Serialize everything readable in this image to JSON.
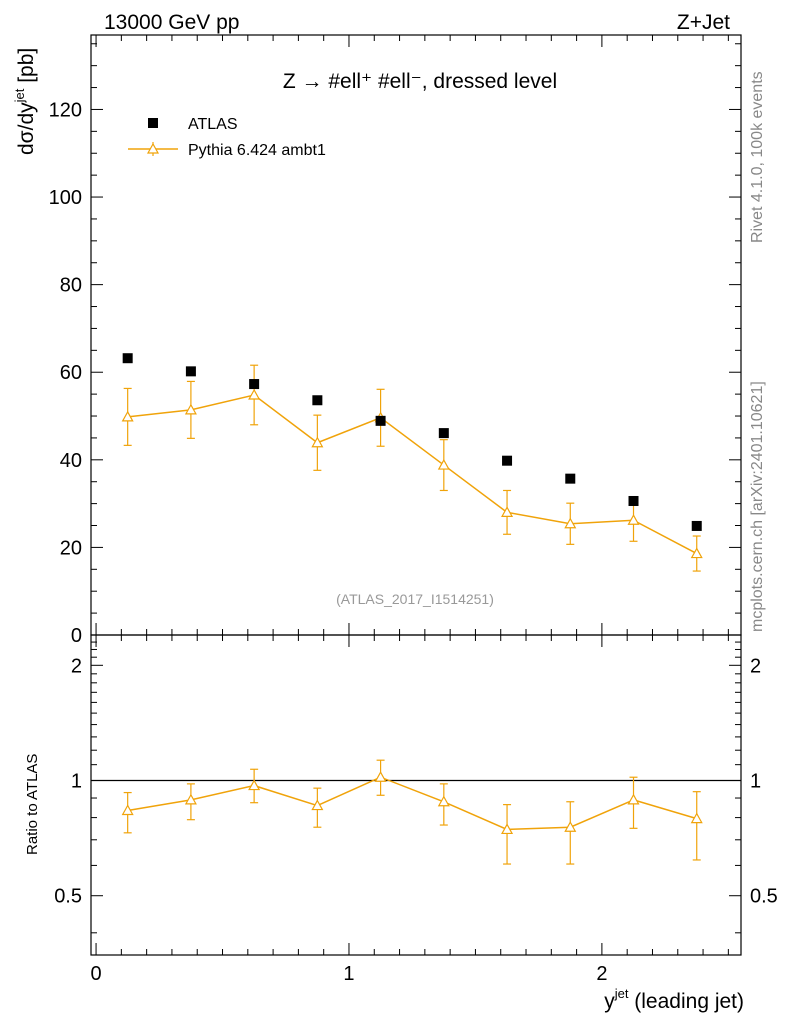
{
  "header": {
    "left": "13000 GeV pp",
    "right": "Z+Jet"
  },
  "side": {
    "rivet": "Rivet 4.1.0,  100k events",
    "mcplots": "mcplots.cern.ch [arXiv:2401.10621]"
  },
  "colors": {
    "mc": "#f0a30a",
    "data": "#000000",
    "watermark": "#999999",
    "side_text": "#888888"
  },
  "chart_data": {
    "type": "scatter",
    "title": "Z → #ell⁺ #ell⁻, dressed level",
    "xlabel": "y",
    "xlabel_sup": "jet",
    "xlabel_suffix": " (leading jet)",
    "ylabel": "dσ/dy",
    "ylabel_sup": "jet",
    "ylabel_suffix": " [pb]",
    "ratio_ylabel": "Ratio to ATLAS",
    "watermark": "(ATLAS_2017_I1514251)",
    "xlim": [
      -0.02,
      2.55
    ],
    "ylim": [
      0,
      137
    ],
    "ratio_ylim": [
      0.35,
      2.4
    ],
    "x_ticks": [
      0,
      1,
      2
    ],
    "x_tick_labels": [
      "0",
      "1",
      "2"
    ],
    "y_ticks": [
      0,
      20,
      40,
      60,
      80,
      100,
      120
    ],
    "y_tick_labels": [
      "0",
      "20",
      "40",
      "60",
      "80",
      "100",
      "120"
    ],
    "ratio_ticks": [
      0.5,
      1,
      2
    ],
    "ratio_tick_labels": [
      "0.5",
      "1",
      "2"
    ],
    "x": [
      0.125,
      0.375,
      0.625,
      0.875,
      1.125,
      1.375,
      1.625,
      1.875,
      2.125,
      2.375
    ],
    "series": [
      {
        "name": "ATLAS",
        "marker": "square",
        "values": [
          63.2,
          60.2,
          57.3,
          53.6,
          48.9,
          46.1,
          39.8,
          35.7,
          30.6,
          24.9
        ]
      },
      {
        "name": "Pythia 6.424 ambt1",
        "marker": "triangle",
        "values": [
          49.8,
          51.4,
          54.8,
          43.9,
          49.6,
          38.8,
          28.0,
          25.4,
          26.2,
          18.6
        ],
        "err_low": [
          6.5,
          6.5,
          6.8,
          6.3,
          6.5,
          5.8,
          5.0,
          4.7,
          4.8,
          4.0
        ],
        "err_high": [
          6.5,
          6.5,
          6.8,
          6.3,
          6.5,
          5.8,
          5.0,
          4.7,
          4.8,
          4.0
        ],
        "ratio": [
          0.835,
          0.89,
          0.97,
          0.86,
          1.02,
          0.88,
          0.745,
          0.755,
          0.89,
          0.795
        ],
        "ratio_err_low": [
          0.105,
          0.1,
          0.095,
          0.105,
          0.105,
          0.115,
          0.14,
          0.15,
          0.14,
          0.175
        ],
        "ratio_err_high": [
          0.095,
          0.09,
          0.1,
          0.095,
          0.11,
          0.1,
          0.12,
          0.125,
          0.13,
          0.14
        ]
      }
    ]
  }
}
